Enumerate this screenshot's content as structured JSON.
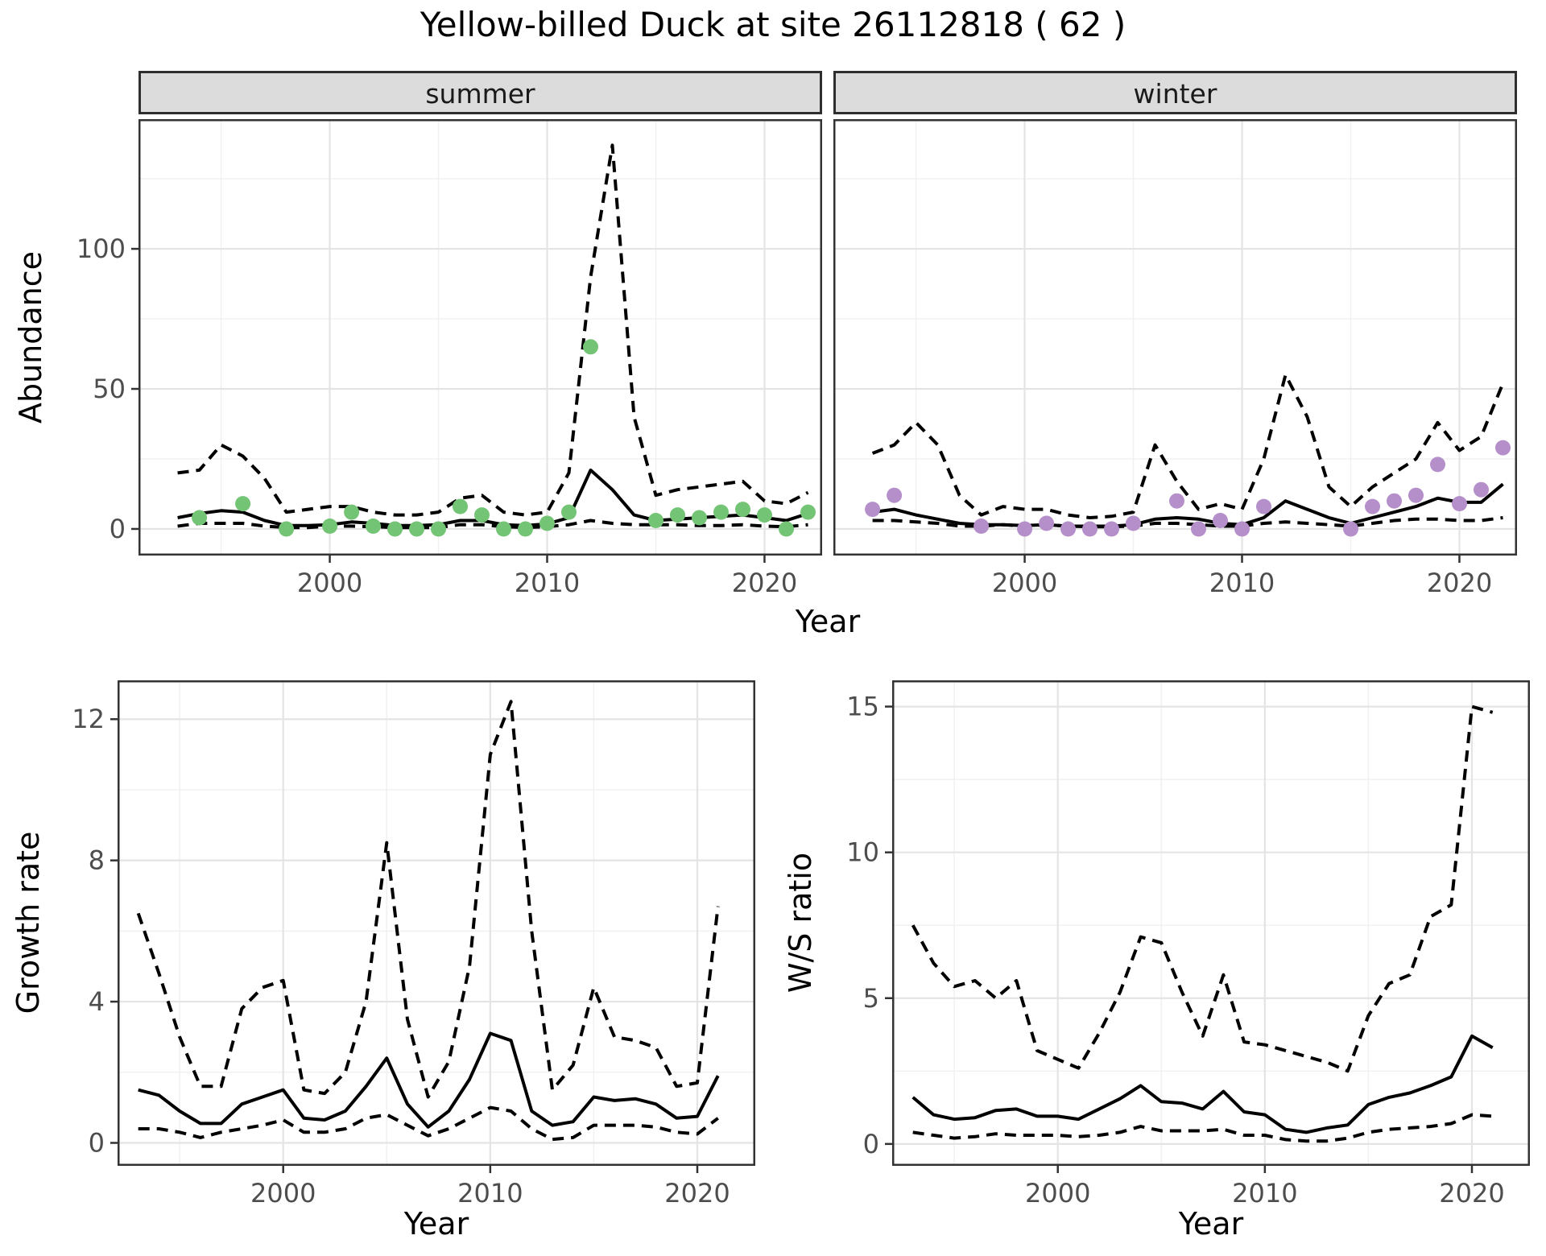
{
  "title": "Yellow-billed Duck at site 26112818 ( 62 )",
  "labels": {
    "y_abundance": "Abundance",
    "x_year": "Year",
    "y_growth": "Growth rate",
    "y_ws": "W/S ratio"
  },
  "colors": {
    "summer_points": "#74c476",
    "winter_points": "#b58fc9",
    "line": "#000000",
    "strip_bg": "#dcdcdc",
    "grid_major": "#e4e4e4",
    "grid_minor": "#f0f0f0",
    "axis_text": "#4d4d4d",
    "panel_border": "#333333"
  },
  "chart_data": [
    {
      "id": "abundance-summer",
      "type": "line",
      "facet_label": "summer",
      "xlabel": "Year",
      "ylabel": "Abundance",
      "xlim": [
        1991.2,
        2022.65
      ],
      "ylim": [
        -9.5,
        146.3
      ],
      "xticks": [
        2000,
        2010,
        2020
      ],
      "xminor": [
        1995,
        2005,
        2015
      ],
      "yticks": [
        0,
        50,
        100
      ],
      "yminor": [
        25,
        75,
        125
      ],
      "x": [
        1993,
        1994,
        1995,
        1996,
        1997,
        1998,
        1999,
        2000,
        2001,
        2002,
        2003,
        2004,
        2005,
        2006,
        2007,
        2008,
        2009,
        2010,
        2011,
        2012,
        2013,
        2014,
        2015,
        2016,
        2017,
        2018,
        2019,
        2020,
        2021,
        2022
      ],
      "series": [
        {
          "name": "median",
          "style": "solid",
          "values": [
            4,
            5.5,
            6.5,
            6,
            3,
            1.2,
            1.2,
            1.5,
            2.5,
            2,
            1.2,
            1.2,
            1.5,
            3,
            3,
            1.5,
            1.2,
            1.8,
            4,
            21,
            14,
            5,
            3,
            3.5,
            4,
            4.5,
            5,
            4,
            3,
            5.5
          ]
        },
        {
          "name": "upper_ci",
          "style": "dashed",
          "values": [
            20,
            21,
            30,
            26,
            18,
            6,
            7,
            8,
            8,
            6,
            5,
            5,
            6,
            11,
            12,
            6,
            5,
            6,
            20,
            90,
            137,
            40,
            12,
            14,
            15,
            16,
            17,
            10,
            9,
            13
          ]
        },
        {
          "name": "lower_ci",
          "style": "dashed",
          "values": [
            1,
            2,
            2,
            2,
            1,
            0.5,
            0.5,
            1,
            1,
            0.8,
            0.5,
            0.5,
            0.5,
            1.5,
            1.5,
            0.8,
            0.5,
            0.8,
            1.5,
            3,
            2,
            1.5,
            1.5,
            1.5,
            1.2,
            1.2,
            1.5,
            1,
            0.8,
            1.5
          ]
        }
      ],
      "points": {
        "name": "observed-counts",
        "color_key": "summer_points",
        "data": [
          [
            1994,
            4
          ],
          [
            1996,
            9
          ],
          [
            1998,
            0
          ],
          [
            2000,
            1
          ],
          [
            2001,
            6
          ],
          [
            2002,
            1
          ],
          [
            2003,
            0
          ],
          [
            2004,
            0
          ],
          [
            2005,
            0
          ],
          [
            2006,
            8
          ],
          [
            2007,
            5
          ],
          [
            2008,
            0
          ],
          [
            2009,
            0
          ],
          [
            2010,
            2
          ],
          [
            2011,
            6
          ],
          [
            2012,
            65
          ],
          [
            2015,
            3
          ],
          [
            2016,
            5
          ],
          [
            2017,
            4
          ],
          [
            2018,
            6
          ],
          [
            2019,
            7
          ],
          [
            2020,
            5
          ],
          [
            2021,
            0
          ],
          [
            2022,
            6
          ]
        ]
      }
    },
    {
      "id": "abundance-winter",
      "type": "line",
      "facet_label": "winter",
      "xlabel": "Year",
      "ylabel": "Abundance",
      "xlim": [
        1991.2,
        2022.65
      ],
      "ylim": [
        -9.5,
        146.3
      ],
      "xticks": [
        2000,
        2010,
        2020
      ],
      "xminor": [
        1995,
        2005,
        2015
      ],
      "yticks": [
        0,
        50,
        100
      ],
      "yminor": [
        25,
        75,
        125
      ],
      "x": [
        1993,
        1994,
        1995,
        1996,
        1997,
        1998,
        1999,
        2000,
        2001,
        2002,
        2003,
        2004,
        2005,
        2006,
        2007,
        2008,
        2009,
        2010,
        2011,
        2012,
        2013,
        2014,
        2015,
        2016,
        2017,
        2018,
        2019,
        2020,
        2021,
        2022
      ],
      "series": [
        {
          "name": "median",
          "style": "solid",
          "values": [
            6,
            7,
            5,
            3.5,
            2,
            1.5,
            1.5,
            1.2,
            1.5,
            1,
            1,
            1,
            1.5,
            3.5,
            4,
            3.5,
            2,
            1.5,
            4,
            10,
            7,
            4,
            2,
            4,
            6,
            8,
            11,
            9.5,
            9.5,
            16
          ]
        },
        {
          "name": "upper_ci",
          "style": "dashed",
          "values": [
            27,
            30,
            38,
            30,
            12,
            5,
            8,
            7,
            7,
            5,
            4,
            4.5,
            6,
            30,
            17,
            7,
            9,
            7,
            25,
            55,
            40,
            15,
            8,
            15,
            20,
            25,
            38,
            28,
            33,
            52
          ]
        },
        {
          "name": "lower_ci",
          "style": "dashed",
          "values": [
            3,
            3,
            2.5,
            2,
            1,
            1,
            1.5,
            1,
            1.5,
            1,
            0.8,
            0.8,
            1,
            2,
            2,
            1.5,
            1,
            1,
            2,
            2.5,
            2,
            1.5,
            1,
            2,
            3,
            3.5,
            3.5,
            3,
            3,
            4
          ]
        }
      ],
      "points": {
        "name": "observed-counts",
        "color_key": "winter_points",
        "data": [
          [
            1993,
            7
          ],
          [
            1994,
            12
          ],
          [
            1998,
            1
          ],
          [
            2000,
            0
          ],
          [
            2001,
            2
          ],
          [
            2002,
            0
          ],
          [
            2003,
            0
          ],
          [
            2004,
            0
          ],
          [
            2005,
            2
          ],
          [
            2007,
            10
          ],
          [
            2008,
            0
          ],
          [
            2009,
            3
          ],
          [
            2010,
            0
          ],
          [
            2011,
            8
          ],
          [
            2015,
            0
          ],
          [
            2016,
            8
          ],
          [
            2017,
            10
          ],
          [
            2018,
            12
          ],
          [
            2019,
            23
          ],
          [
            2020,
            9
          ],
          [
            2021,
            14
          ],
          [
            2022,
            29
          ]
        ]
      }
    },
    {
      "id": "growth-rate",
      "type": "line",
      "facet_label": "",
      "xlabel": "Year",
      "ylabel": "Growth rate",
      "xlim": [
        1992.0,
        2022.8
      ],
      "ylim": [
        -0.65,
        13.1
      ],
      "xticks": [
        2000,
        2010,
        2020
      ],
      "xminor": [
        1995,
        2005,
        2015
      ],
      "yticks": [
        0,
        4,
        8,
        12
      ],
      "yminor": [
        2,
        6,
        10
      ],
      "x": [
        1993,
        1994,
        1995,
        1996,
        1997,
        1998,
        1999,
        2000,
        2001,
        2002,
        2003,
        2004,
        2005,
        2006,
        2007,
        2008,
        2009,
        2010,
        2011,
        2012,
        2013,
        2014,
        2015,
        2016,
        2017,
        2018,
        2019,
        2020,
        2021
      ],
      "series": [
        {
          "name": "median",
          "style": "solid",
          "values": [
            1.5,
            1.35,
            0.9,
            0.55,
            0.55,
            1.1,
            1.3,
            1.5,
            0.7,
            0.65,
            0.9,
            1.6,
            2.4,
            1.1,
            0.45,
            0.9,
            1.8,
            3.1,
            2.9,
            0.9,
            0.5,
            0.6,
            1.3,
            1.2,
            1.25,
            1.1,
            0.7,
            0.75,
            1.9
          ]
        },
        {
          "name": "upper_ci",
          "style": "dashed",
          "values": [
            6.5,
            4.8,
            3.0,
            1.6,
            1.6,
            3.8,
            4.4,
            4.6,
            1.5,
            1.4,
            2.0,
            4.0,
            8.5,
            3.5,
            1.3,
            2.3,
            5.0,
            11.0,
            12.5,
            6.0,
            1.5,
            2.2,
            4.4,
            3.0,
            2.9,
            2.7,
            1.6,
            1.7,
            6.7
          ]
        },
        {
          "name": "lower_ci",
          "style": "dashed",
          "values": [
            0.4,
            0.4,
            0.3,
            0.15,
            0.3,
            0.4,
            0.5,
            0.65,
            0.3,
            0.3,
            0.4,
            0.7,
            0.8,
            0.5,
            0.2,
            0.4,
            0.7,
            1.0,
            0.9,
            0.4,
            0.1,
            0.15,
            0.5,
            0.5,
            0.5,
            0.45,
            0.3,
            0.25,
            0.7
          ]
        }
      ],
      "points": null
    },
    {
      "id": "ws-ratio",
      "type": "line",
      "facet_label": "",
      "xlabel": "Year",
      "ylabel": "W/S ratio",
      "xlim": [
        1992.0,
        2022.8
      ],
      "ylim": [
        -0.75,
        15.9
      ],
      "xticks": [
        2000,
        2010,
        2020
      ],
      "xminor": [
        1995,
        2005,
        2015
      ],
      "yticks": [
        0,
        5,
        10,
        15
      ],
      "yminor": [
        2.5,
        7.5,
        12.5
      ],
      "x": [
        1993,
        1994,
        1995,
        1996,
        1997,
        1998,
        1999,
        2000,
        2001,
        2002,
        2003,
        2004,
        2005,
        2006,
        2007,
        2008,
        2009,
        2010,
        2011,
        2012,
        2013,
        2014,
        2015,
        2016,
        2017,
        2018,
        2019,
        2020,
        2021
      ],
      "series": [
        {
          "name": "median",
          "style": "solid",
          "values": [
            1.6,
            1.0,
            0.85,
            0.9,
            1.15,
            1.2,
            0.95,
            0.95,
            0.85,
            1.2,
            1.55,
            2.0,
            1.45,
            1.4,
            1.2,
            1.8,
            1.1,
            1.0,
            0.5,
            0.4,
            0.55,
            0.65,
            1.35,
            1.6,
            1.75,
            2.0,
            2.3,
            3.7,
            3.3
          ]
        },
        {
          "name": "upper_ci",
          "style": "dashed",
          "values": [
            7.5,
            6.2,
            5.4,
            5.6,
            5.0,
            5.6,
            3.2,
            2.9,
            2.6,
            3.8,
            5.2,
            7.1,
            6.9,
            5.2,
            3.7,
            5.8,
            3.5,
            3.4,
            3.2,
            3.0,
            2.8,
            2.5,
            4.4,
            5.5,
            5.8,
            7.8,
            8.2,
            15.0,
            14.8
          ]
        },
        {
          "name": "lower_ci",
          "style": "dashed",
          "values": [
            0.4,
            0.3,
            0.2,
            0.25,
            0.35,
            0.3,
            0.3,
            0.3,
            0.25,
            0.3,
            0.4,
            0.6,
            0.45,
            0.45,
            0.45,
            0.5,
            0.3,
            0.3,
            0.15,
            0.1,
            0.1,
            0.2,
            0.4,
            0.5,
            0.55,
            0.6,
            0.7,
            1.0,
            0.95
          ]
        }
      ],
      "points": null
    }
  ]
}
